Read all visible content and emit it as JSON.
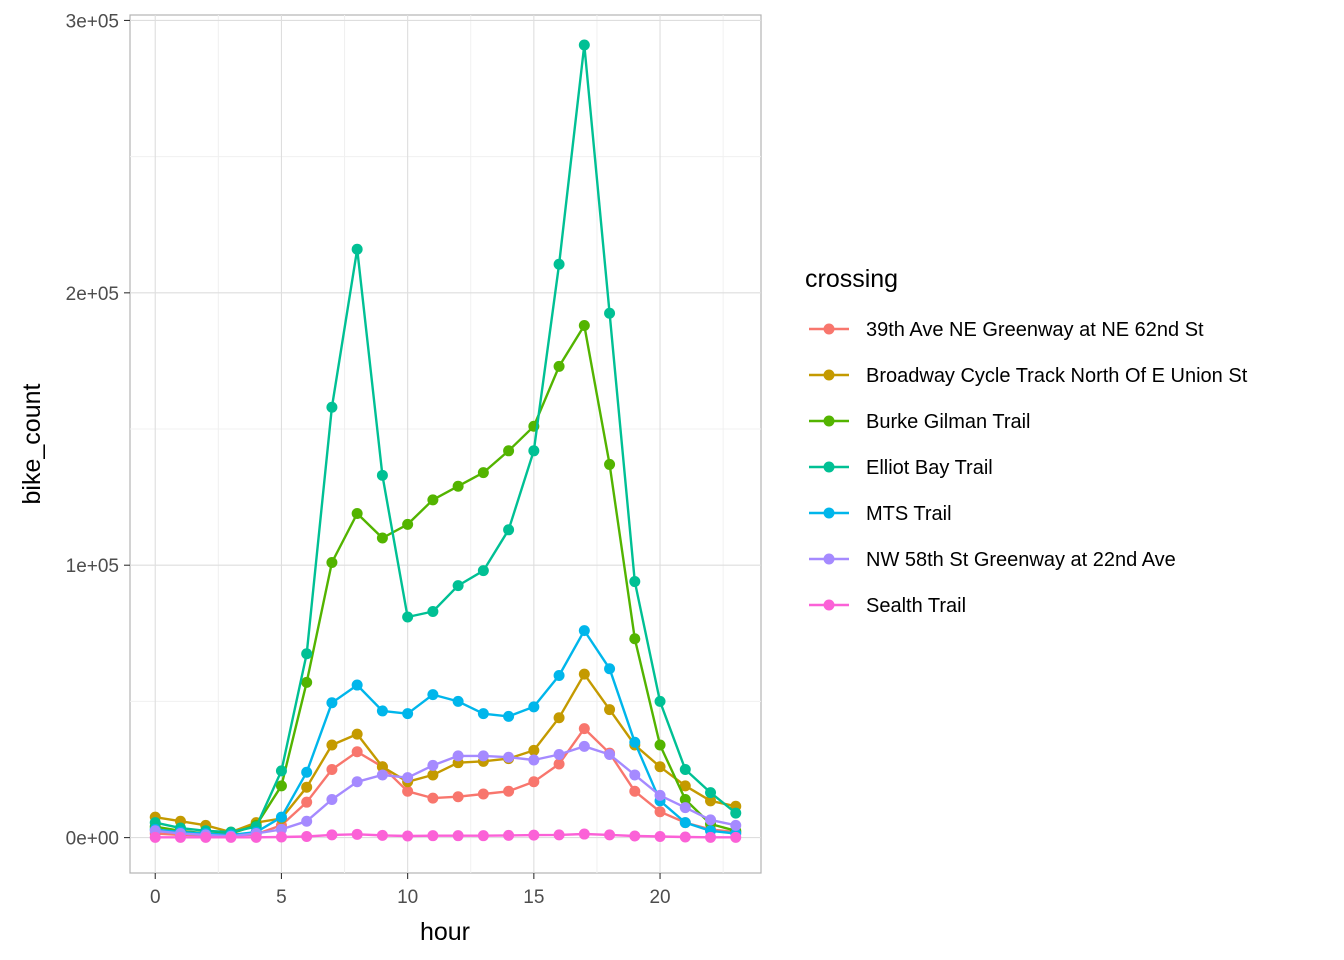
{
  "chart_data": {
    "type": "line",
    "xlabel": "hour",
    "ylabel": "bike_count",
    "xlim": [
      -1,
      24
    ],
    "ylim": [
      -13000,
      302000
    ],
    "x_ticks": [
      0,
      5,
      10,
      15,
      20
    ],
    "x_tick_labels": [
      "0",
      "5",
      "10",
      "15",
      "20"
    ],
    "y_ticks": [
      0,
      100000,
      200000,
      300000
    ],
    "y_tick_labels": [
      "0e+00",
      "1e+05",
      "2e+05",
      "3e+05"
    ],
    "grid": true,
    "legend_title": "crossing",
    "legend_position": "right",
    "x": [
      0,
      1,
      2,
      3,
      4,
      5,
      6,
      7,
      8,
      9,
      10,
      11,
      12,
      13,
      14,
      15,
      16,
      17,
      18,
      19,
      20,
      21,
      22,
      23
    ],
    "series": [
      {
        "name": "39th Ave NE Greenway at NE 62nd St",
        "color": "#F8766D",
        "values": [
          1500,
          1000,
          800,
          600,
          1200,
          4500,
          13000,
          25000,
          31500,
          26000,
          17000,
          14500,
          15000,
          16000,
          17000,
          20500,
          27000,
          40000,
          31000,
          17000,
          9500,
          5500,
          3000,
          2000
        ]
      },
      {
        "name": "Broadway Cycle Track North Of E Union St",
        "color": "#C49A00",
        "values": [
          7500,
          6000,
          4500,
          2000,
          5500,
          7000,
          18500,
          34000,
          38000,
          26000,
          20500,
          23000,
          27500,
          28000,
          29000,
          32000,
          44000,
          60000,
          47000,
          34000,
          26000,
          19000,
          13500,
          11500
        ]
      },
      {
        "name": "Burke Gilman Trail",
        "color": "#53B400",
        "values": [
          4000,
          2500,
          1500,
          1500,
          4500,
          19000,
          57000,
          101000,
          119000,
          110000,
          115000,
          124000,
          129000,
          134000,
          142000,
          151000,
          173000,
          188000,
          137000,
          73000,
          34000,
          14000,
          5000,
          2500
        ]
      },
      {
        "name": "Elliot Bay Trail",
        "color": "#00C094",
        "values": [
          5500,
          3500,
          2500,
          2000,
          4000,
          24500,
          67500,
          158000,
          216000,
          133000,
          81000,
          83000,
          92500,
          98000,
          113000,
          142000,
          210500,
          291000,
          192500,
          94000,
          50000,
          25000,
          16500,
          9000
        ]
      },
      {
        "name": "MTS Trail",
        "color": "#00B6EB",
        "values": [
          3000,
          2000,
          1500,
          1000,
          2000,
          7500,
          24000,
          49500,
          56000,
          46500,
          45500,
          52500,
          50000,
          45500,
          44500,
          48000,
          59500,
          76000,
          62000,
          35000,
          13500,
          5500,
          2500,
          1500
        ]
      },
      {
        "name": "NW 58th St Greenway at 22nd Ave",
        "color": "#A58AFF",
        "values": [
          2500,
          1500,
          1000,
          500,
          1500,
          3000,
          6000,
          14000,
          20500,
          23000,
          22000,
          26500,
          30000,
          30000,
          29500,
          28500,
          30500,
          33500,
          30500,
          23000,
          15500,
          11000,
          6500,
          4500
        ]
      },
      {
        "name": "Sealth Trail",
        "color": "#FB61D7",
        "values": [
          100,
          100,
          100,
          100,
          100,
          200,
          400,
          1000,
          1200,
          800,
          600,
          700,
          700,
          700,
          800,
          900,
          1000,
          1300,
          1000,
          600,
          400,
          200,
          100,
          100
        ]
      }
    ]
  }
}
